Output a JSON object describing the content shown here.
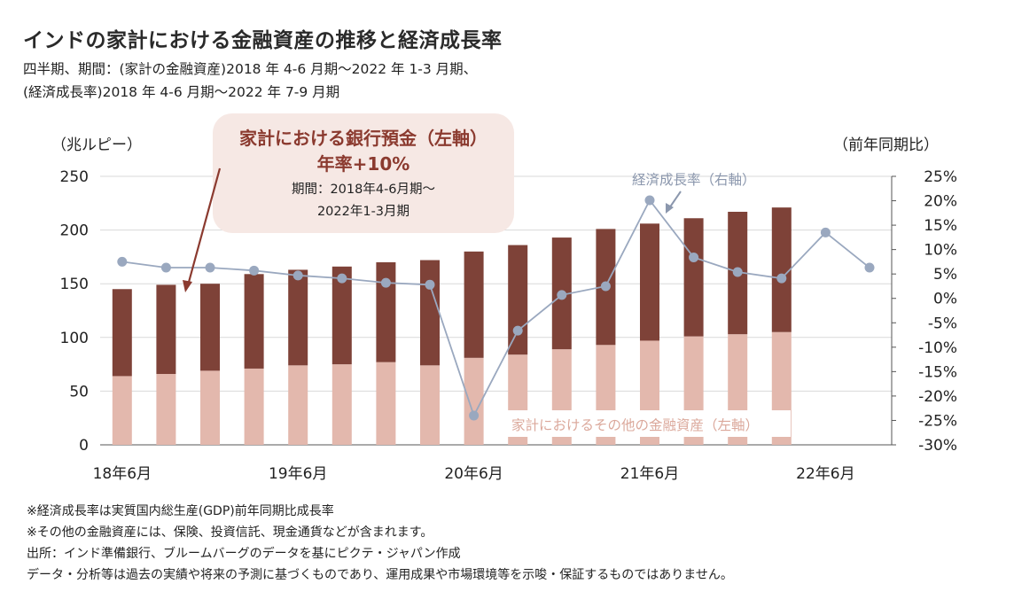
{
  "title": "インドの家計における金融資産の推移と経済成長率",
  "subtitle_line1": "四半期、期間：(家計の金融資産)2018 年 4-6 月期～2022 年 1-3 月期、",
  "subtitle_line2": "(経済成長率)2018 年 4-6 月期～2022 年 7-9 月期",
  "left_axis_unit": "（兆ルピー）",
  "right_axis_unit": "（前年同期比）",
  "callout": {
    "line1": "家計における銀行預金（左軸）",
    "line2": "年率+10%",
    "line3": "期間：2018年4-6月期～",
    "line4": "2022年1-3月期"
  },
  "label_growth": "経済成長率（右軸）",
  "label_other": "家計におけるその他の金融資産（左軸）",
  "notes": [
    "※経済成長率は実質国内総生産(GDP)前年同期比成長率",
    "※その他の金融資産には、保険、投資信託、現金通貨などが含まれます。",
    "出所：インド準備銀行、ブルームバーグのデータを基にピクテ・ジャパン作成",
    "データ・分析等は過去の実績や将来の予測に基づくものであり、運用成果や市場環境等を示唆・保証するものではありません。"
  ],
  "colors": {
    "deposit": "#7e4238",
    "other": "#e3b8ad",
    "growth_line": "#9aa8bf",
    "callout_bg": "#f6e8e4",
    "callout_text": "#8b3a2f"
  },
  "chart_data": {
    "type": "bar",
    "stacked": true,
    "x_tick_labels": [
      "18年6月",
      "19年6月",
      "20年6月",
      "21年6月",
      "22年6月"
    ],
    "bar_quarters": [
      "2018-Q2",
      "2018-Q3",
      "2018-Q4",
      "2019-Q1",
      "2019-Q2",
      "2019-Q3",
      "2019-Q4",
      "2020-Q1",
      "2020-Q2",
      "2020-Q3",
      "2020-Q4",
      "2021-Q1",
      "2021-Q2",
      "2021-Q3",
      "2021-Q4",
      "2022-Q1"
    ],
    "series": [
      {
        "name": "家計におけるその他の金融資産（左軸）",
        "axis": "left",
        "values": [
          64,
          66,
          69,
          71,
          74,
          75,
          77,
          74,
          81,
          84,
          89,
          93,
          97,
          101,
          103,
          105
        ]
      },
      {
        "name": "家計における銀行預金（左軸）",
        "axis": "left",
        "values": [
          81,
          83,
          81,
          88,
          89,
          91,
          93,
          98,
          99,
          102,
          104,
          108,
          109,
          110,
          114,
          116
        ]
      }
    ],
    "line_series": {
      "name": "経済成長率（右軸）",
      "axis": "right",
      "quarters": [
        "2018-Q2",
        "2018-Q3",
        "2018-Q4",
        "2019-Q1",
        "2019-Q2",
        "2019-Q3",
        "2019-Q4",
        "2020-Q1",
        "2020-Q2",
        "2020-Q3",
        "2020-Q4",
        "2021-Q1",
        "2021-Q2",
        "2021-Q3",
        "2021-Q4",
        "2022-Q1",
        "2022-Q2",
        "2022-Q3"
      ],
      "values": [
        7.5,
        6.3,
        6.3,
        5.7,
        4.7,
        4.1,
        3.2,
        2.8,
        -24.0,
        -6.6,
        0.7,
        2.5,
        20.1,
        8.4,
        5.4,
        4.1,
        13.5,
        6.3
      ]
    },
    "left_axis": {
      "ylim": [
        0,
        250
      ],
      "ticks": [
        "0",
        "50",
        "100",
        "150",
        "200",
        "250"
      ]
    },
    "right_axis": {
      "ylim": [
        -30,
        25
      ],
      "ticks": [
        "25%",
        "20%",
        "15%",
        "10%",
        "5%",
        "0%",
        "-5%",
        "-10%",
        "-15%",
        "-20%",
        "-25%",
        "-30%"
      ]
    },
    "grid": true
  }
}
